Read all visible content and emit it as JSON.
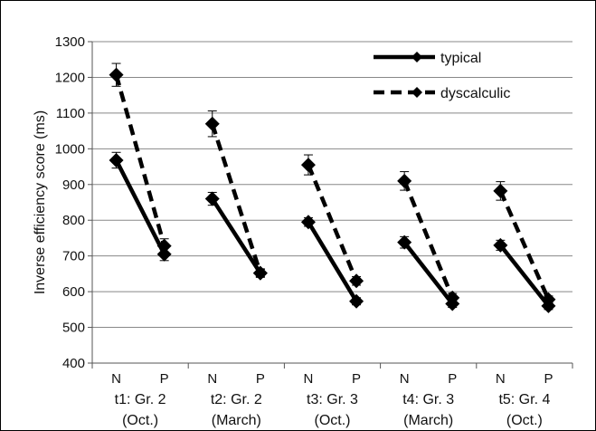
{
  "chart_data": {
    "type": "line",
    "ylabel": "Inverse efficiency score (ms)",
    "xlabel": "",
    "ylim": [
      400,
      1300
    ],
    "yticks": [
      400,
      500,
      600,
      700,
      800,
      900,
      1000,
      1100,
      1200,
      1300
    ],
    "grid": true,
    "legend_position": "top-right",
    "groups": [
      {
        "label_line1": "t1: Gr. 2",
        "label_line2": "(Oct.)"
      },
      {
        "label_line1": "t2: Gr. 2",
        "label_line2": "(March)"
      },
      {
        "label_line1": "t3: Gr. 3",
        "label_line2": "(Oct.)"
      },
      {
        "label_line1": "t4: Gr. 3",
        "label_line2": "(March)"
      },
      {
        "label_line1": "t5: Gr. 4",
        "label_line2": "(Oct.)"
      }
    ],
    "categories": [
      "N",
      "P",
      "N",
      "P",
      "N",
      "P",
      "N",
      "P",
      "N",
      "P"
    ],
    "series": [
      {
        "name": "typical",
        "style": "solid",
        "values": [
          968,
          705,
          860,
          652,
          795,
          573,
          738,
          566,
          730,
          560
        ],
        "errors": [
          22,
          18,
          18,
          12,
          12,
          10,
          16,
          10,
          14,
          10
        ]
      },
      {
        "name": "dyscalculic",
        "style": "dashed",
        "values": [
          1207,
          728,
          1070,
          652,
          955,
          630,
          910,
          583,
          882,
          578
        ],
        "errors": [
          32,
          20,
          36,
          10,
          28,
          12,
          26,
          12,
          26,
          10
        ]
      }
    ],
    "colors": {
      "line": "#000000",
      "grid": "#888888",
      "axis": "#555555"
    }
  }
}
